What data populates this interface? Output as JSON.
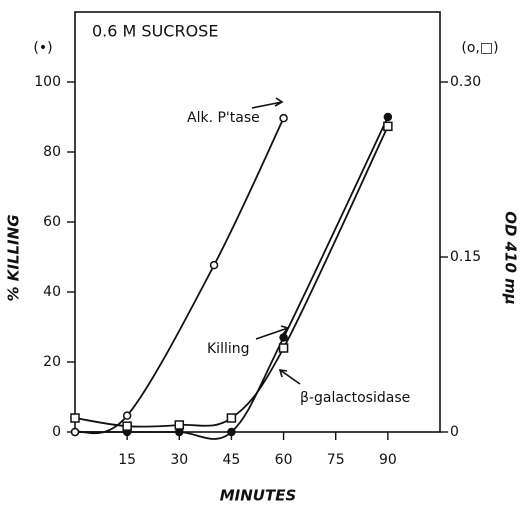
{
  "chart_data": {
    "type": "line",
    "title": "0.6 M SUCROSE",
    "x_label": "MINUTES",
    "y_label": "% KILLING",
    "y2_label": "OD 410 mμ",
    "y_key": "(•)",
    "y2_key": "(o,□)",
    "xlim": [
      0,
      105
    ],
    "xticks": [
      15,
      30,
      45,
      60,
      75,
      90
    ],
    "ylim": [
      0,
      120
    ],
    "yticks": [
      0,
      20,
      40,
      60,
      80,
      100
    ],
    "y2lim": [
      0,
      0.36
    ],
    "y2ticks": [
      0,
      0.15,
      {
        "value": 0.3,
        "label": "0.30"
      }
    ],
    "series": [
      {
        "name": "Killing",
        "marker": "filled-circle",
        "color": "#111111",
        "x": [
          0,
          15,
          30,
          45,
          60,
          90
        ],
        "values": [
          0,
          0,
          0,
          0,
          27,
          90
        ]
      },
      {
        "name": "Alk. P'tase",
        "marker": "open-circle",
        "color": "#111111",
        "axis": "y2",
        "x": [
          0,
          15,
          40,
          60
        ],
        "values": [
          0,
          0.014,
          0.143,
          0.269
        ]
      },
      {
        "name": "β-galactosidase",
        "marker": "square",
        "color": "#111111",
        "axis": "y2",
        "x": [
          0,
          15,
          30,
          45,
          60,
          90
        ],
        "values": [
          0.012,
          0.005,
          0.006,
          0.012,
          0.072,
          0.262
        ]
      }
    ]
  }
}
